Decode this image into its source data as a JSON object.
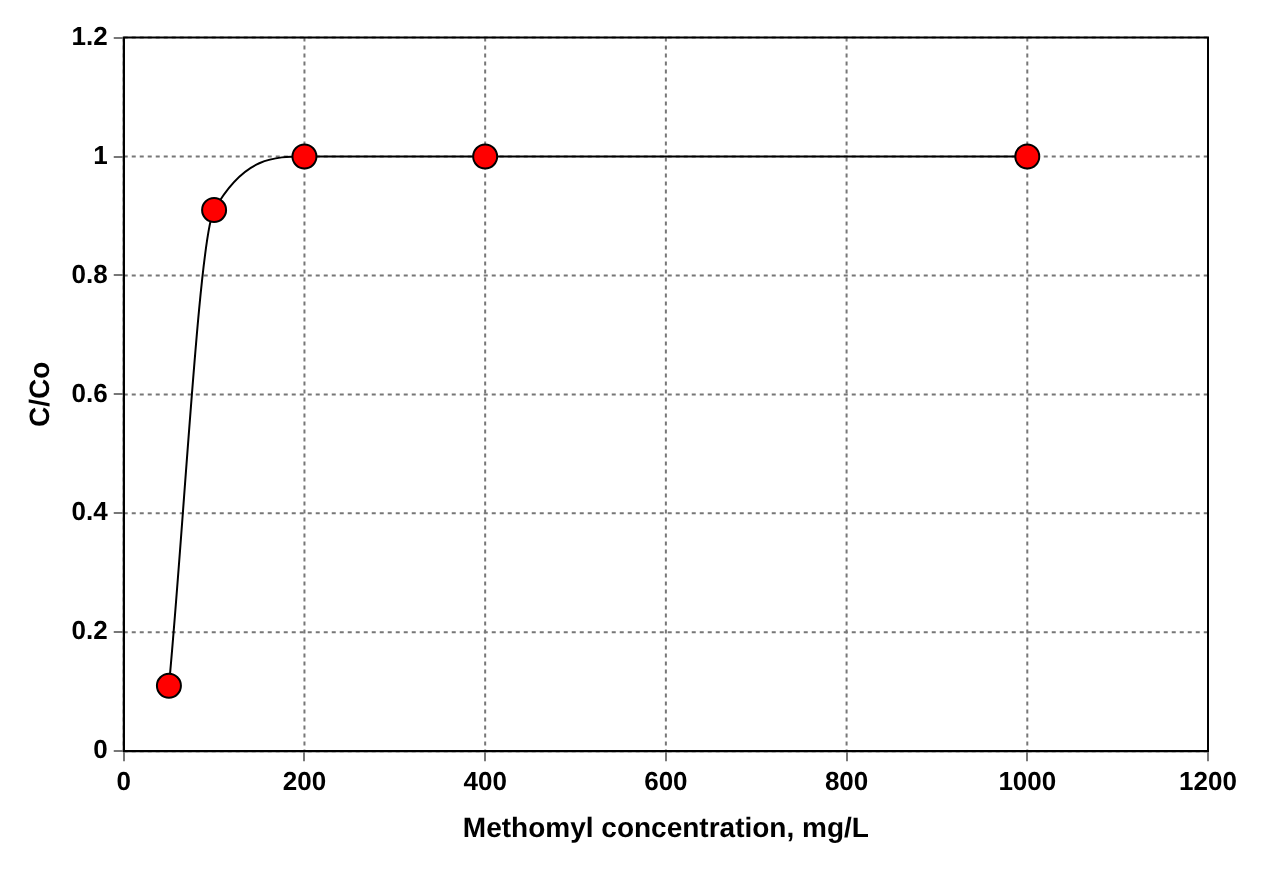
{
  "chart_data": {
    "type": "line",
    "xlabel": "Methomyl concentration, mg/L",
    "ylabel": "C/Co",
    "x": [
      50,
      100,
      200,
      400,
      1000
    ],
    "series": [
      {
        "color": "#ff0000",
        "values": [
          0.11,
          0.91,
          1.0,
          1.0,
          1.0
        ]
      }
    ],
    "xlim": [
      0,
      1200
    ],
    "xticks": [
      0,
      200,
      400,
      600,
      800,
      1000,
      1200
    ],
    "ylim": [
      0,
      1.2
    ],
    "yticks": [
      0,
      0.2,
      0.4,
      0.6,
      0.8,
      1,
      1.2
    ],
    "grid": true,
    "legend": false,
    "marker": "circle",
    "line_style": "solid"
  }
}
